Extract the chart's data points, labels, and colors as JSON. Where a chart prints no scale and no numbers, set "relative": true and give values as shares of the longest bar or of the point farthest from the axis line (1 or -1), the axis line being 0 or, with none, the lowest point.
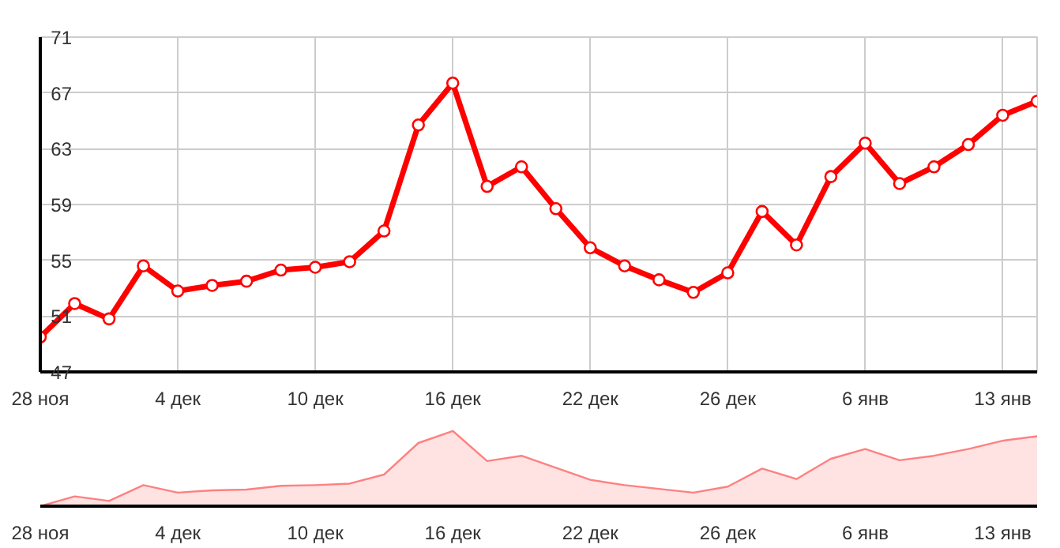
{
  "chart_data": [
    {
      "type": "line",
      "categories": [
        "28 ноя",
        null,
        null,
        null,
        "4 дек",
        null,
        null,
        null,
        "10 дек",
        null,
        null,
        null,
        "16 дек",
        null,
        null,
        null,
        "22 дек",
        null,
        null,
        null,
        "26 дек",
        null,
        null,
        null,
        "6 янв",
        null,
        null,
        null,
        "13 янв",
        null
      ],
      "series": [
        {
          "color": "#ff0000",
          "values": [
            49.5,
            51.9,
            50.8,
            54.6,
            52.8,
            53.2,
            53.5,
            54.3,
            54.5,
            54.9,
            57.1,
            64.7,
            67.7,
            60.3,
            61.7,
            58.7,
            55.9,
            54.6,
            53.6,
            52.7,
            54.1,
            58.5,
            56.1,
            61.0,
            63.4,
            60.5,
            61.7,
            63.3,
            65.4,
            66.4
          ]
        }
      ],
      "ylim": [
        47,
        71
      ],
      "yticks": [
        47,
        51,
        55,
        59,
        63,
        67,
        71
      ],
      "grid": true,
      "marker": "circle",
      "line_style": "solid"
    },
    {
      "type": "area",
      "relative": true,
      "categories": [
        "28 ноя",
        null,
        null,
        null,
        "4 дек",
        null,
        null,
        null,
        "10 дек",
        null,
        null,
        null,
        "16 дек",
        null,
        null,
        null,
        "22 дек",
        null,
        null,
        null,
        "26 дек",
        null,
        null,
        null,
        "6 янв",
        null,
        null,
        null,
        "13 янв",
        null
      ],
      "series": [
        {
          "color": "#ff8080",
          "values": [
            0,
            0.13,
            0.07,
            0.28,
            0.18,
            0.21,
            0.22,
            0.27,
            0.28,
            0.3,
            0.42,
            0.84,
            1,
            0.6,
            0.67,
            0.51,
            0.35,
            0.28,
            0.23,
            0.18,
            0.26,
            0.5,
            0.36,
            0.63,
            0.76,
            0.61,
            0.67,
            0.76,
            0.87,
            0.93
          ]
        }
      ],
      "tick_labels": "x"
    }
  ]
}
